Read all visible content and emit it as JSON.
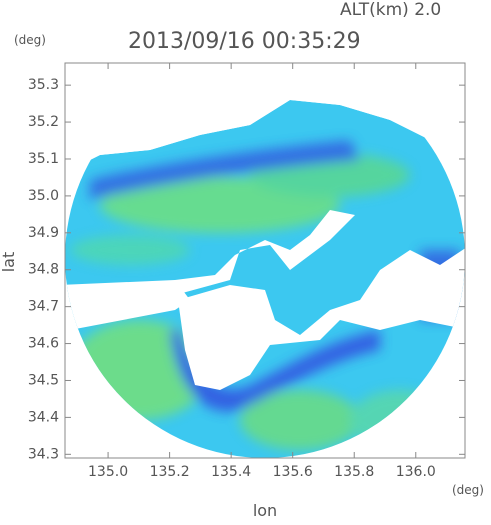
{
  "chart_data": {
    "type": "radar-map",
    "title": "2013/09/16 00:35:29",
    "altitude_label": "ALT(km) 2.0",
    "x_label": "lon",
    "x_unit": "(deg)",
    "y_label": "lat",
    "y_unit": "(deg)",
    "xlim": [
      134.86,
      136.16
    ],
    "ylim": [
      34.29,
      35.36
    ],
    "xticks": [
      {
        "value": 135.0,
        "label": "135.0"
      },
      135.2,
      135.4,
      135.6,
      135.8,
      {
        "value": 136.0,
        "label": "136.0"
      }
    ],
    "yticks": [
      34.3,
      34.4,
      34.5,
      34.6,
      34.7,
      34.8,
      34.9,
      {
        "value": 35.0,
        "label": "35.0"
      },
      35.1,
      35.2,
      35.3
    ]
  }
}
